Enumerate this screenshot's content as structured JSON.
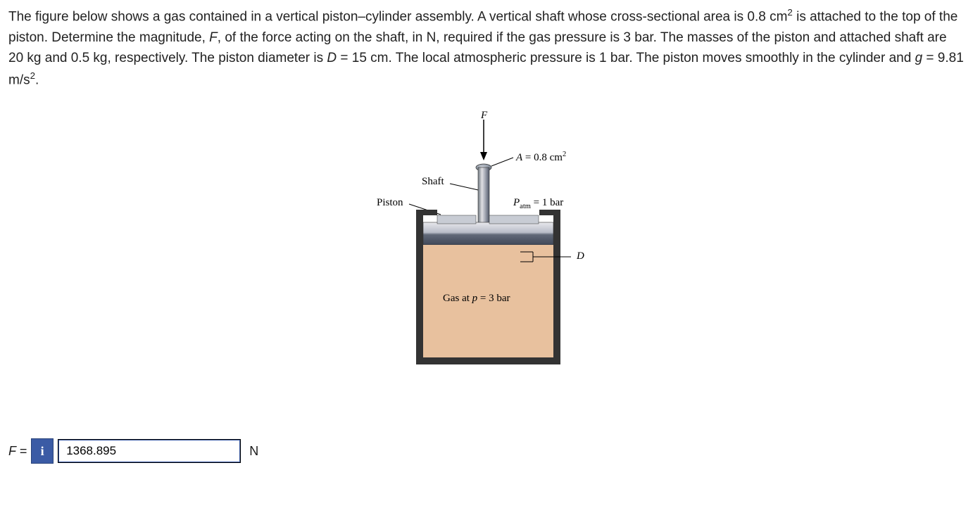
{
  "problem": {
    "text_html": "The figure below shows a gas contained in a vertical piston–cylinder assembly. A vertical shaft whose cross-sectional area is 0.8 cm<sup>2</sup> is attached to the top of the piston. Determine the magnitude, <span class=\"italic\">F</span>, of the force acting on the shaft, in N, required if the gas pressure is 3 bar. The masses of the piston and attached shaft are 20 kg and 0.5 kg, respectively. The piston diameter is <span class=\"italic\">D</span> = 15 cm. The local atmospheric pressure is 1 bar. The piston moves smoothly in the cylinder and <span class=\"italic\">g</span> = 9.81 m/s<sup>2</sup>."
  },
  "figure": {
    "force_label": "F",
    "shaft_area_label": "A = 0.8 cm²",
    "shaft_label": "Shaft",
    "piston_label": "Piston",
    "patm_label": "Pₐₜₘ = 1 bar",
    "diameter_label": "D",
    "gas_label": "Gas at p = 3 bar",
    "colors": {
      "cylinder_outline": "#333333",
      "gas_fill": "#e8c19e",
      "piston_fill_light": "#d0d0d0",
      "piston_fill_dark": "#606878",
      "shaft_fill_light": "#d0d0d0",
      "shaft_fill_dark": "#707880",
      "shaft_top": "#7c8898"
    }
  },
  "answer": {
    "label": "F =",
    "value": "1368.895",
    "unit": "N"
  }
}
